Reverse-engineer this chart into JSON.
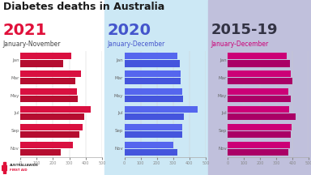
{
  "title": "Diabetes deaths in Australia",
  "title_fontsize": 9,
  "title_color": "#1a1a1a",
  "panels": [
    {
      "year_label": "2021",
      "year_color": "#e0103a",
      "year_fontsize": 14,
      "subtitle": "January-November",
      "subtitle_color": "#444444",
      "subtitle_fontsize": 5.5,
      "bg_color": "#ffffff",
      "bar_color": "#d91040",
      "bar_color2": "#b50d30",
      "months": [
        "Jan",
        "Mar",
        "May",
        "Jul",
        "Sep",
        "Nov"
      ],
      "values": [
        [
          310,
          265
        ],
        [
          370,
          335
        ],
        [
          345,
          350
        ],
        [
          430,
          390
        ],
        [
          380,
          360
        ],
        [
          320,
          250
        ]
      ],
      "xlim": [
        0,
        500
      ],
      "xticks": [
        0,
        100,
        200,
        300,
        400,
        500
      ]
    },
    {
      "year_label": "2020",
      "year_color": "#4455cc",
      "year_fontsize": 14,
      "subtitle": "January-December",
      "subtitle_color": "#4455cc",
      "subtitle_fontsize": 5.5,
      "bg_color": "#cce8f5",
      "bar_color": "#5566ee",
      "bar_color2": "#4455dd",
      "months": [
        "Jan",
        "Mar",
        "May",
        "Jul",
        "Sep",
        "Nov"
      ],
      "values": [
        [
          325,
          340
        ],
        [
          345,
          345
        ],
        [
          355,
          360
        ],
        [
          450,
          365
        ],
        [
          355,
          355
        ],
        [
          300,
          325
        ]
      ],
      "xlim": [
        0,
        500
      ],
      "xticks": [
        0,
        100,
        200,
        300,
        400,
        500
      ]
    },
    {
      "year_label": "2015-19",
      "year_color": "#333344",
      "year_fontsize": 13,
      "subtitle": "January-December",
      "subtitle_color": "#cc0077",
      "subtitle_fontsize": 5.5,
      "bg_color": "#c0c0dc",
      "bar_color": "#cc0077",
      "bar_color2": "#aa0066",
      "months": [
        "Jan",
        "Mar",
        "May",
        "Jul",
        "Sep",
        "Nov"
      ],
      "values": [
        [
          365,
          385
        ],
        [
          390,
          400
        ],
        [
          375,
          390
        ],
        [
          380,
          420
        ],
        [
          395,
          390
        ],
        [
          385,
          375
        ]
      ],
      "xlim": [
        0,
        500
      ],
      "xticks": [
        0,
        100,
        200,
        300,
        400,
        500
      ]
    }
  ]
}
